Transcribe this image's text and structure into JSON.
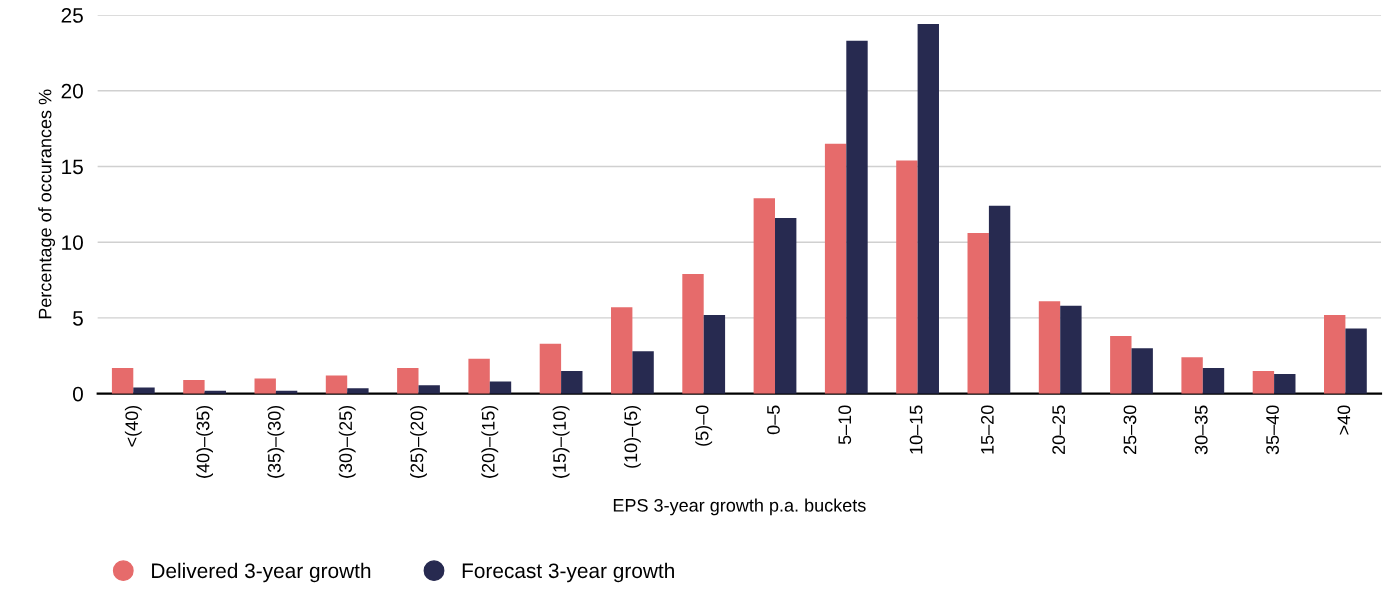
{
  "chart_data": {
    "type": "bar",
    "xlabel": "EPS 3-year growth p.a. buckets",
    "ylabel": "Percentage of occurances %",
    "categories": [
      "<(40)",
      "(40)–(35)",
      "(35)–(30)",
      "(30)–(25)",
      "(25)–(20)",
      "(20)–(15)",
      "(15)–(10)",
      "(10)–(5)",
      "(5)–0",
      "0–5",
      "5–10",
      "10–15",
      "15–20",
      "20–25",
      "25–30",
      "30–35",
      "35–40",
      ">40"
    ],
    "series": [
      {
        "name": "Delivered 3-year growth",
        "color": "#e66b6b",
        "values": [
          1.7,
          0.9,
          1.0,
          1.2,
          1.7,
          2.3,
          3.3,
          5.7,
          7.9,
          12.9,
          16.5,
          15.4,
          10.6,
          6.1,
          3.8,
          2.4,
          1.5,
          5.2
        ]
      },
      {
        "name": "Forecast 3-year growth",
        "color": "#272a50",
        "values": [
          0.4,
          0.2,
          0.2,
          0.35,
          0.55,
          0.8,
          1.5,
          2.8,
          5.2,
          11.6,
          23.3,
          24.4,
          12.4,
          5.8,
          3.0,
          1.7,
          1.3,
          4.3
        ]
      }
    ],
    "ylim": [
      0,
      25
    ],
    "yticks": [
      0,
      5,
      10,
      15,
      20,
      25
    ],
    "grid": "y",
    "legend": "bottom left"
  }
}
